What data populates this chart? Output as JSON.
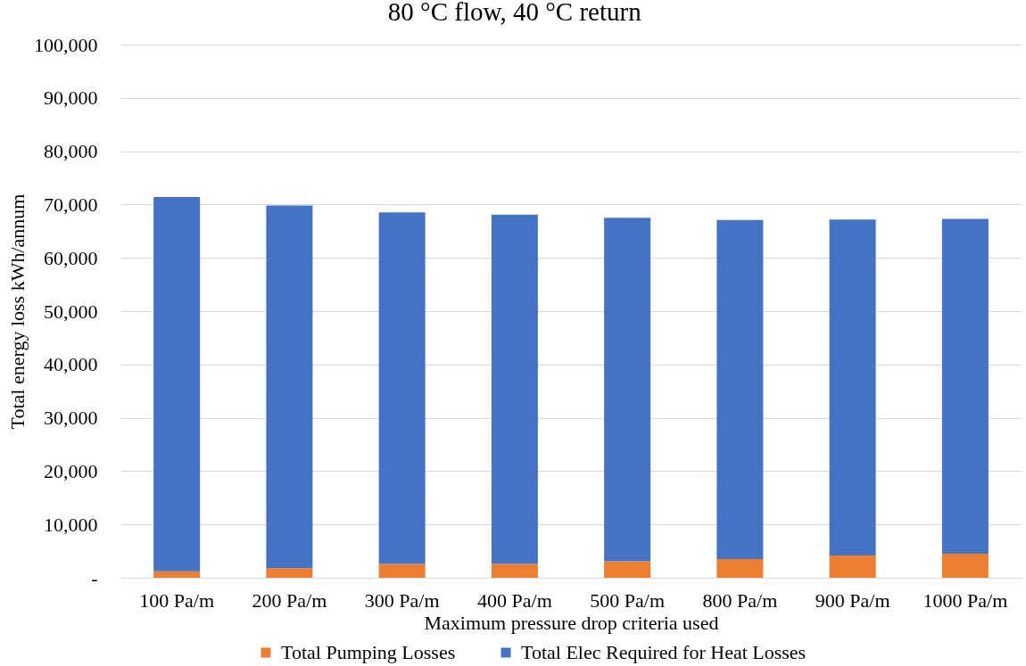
{
  "chart_data": {
    "type": "bar",
    "title": "80 °C flow, 40 °C return",
    "xlabel": "Maximum pressure drop criteria used",
    "ylabel": "Total energy loss kWh/annum",
    "categories": [
      "100 Pa/m",
      "200 Pa/m",
      "300 Pa/m",
      "400 Pa/m",
      "500 Pa/m",
      "800 Pa/m",
      "900 Pa/m",
      "1000 Pa/m"
    ],
    "series": [
      {
        "name": "Total Pumping Losses",
        "color": "#ed7d31",
        "values": [
          1200,
          1800,
          2600,
          2600,
          3100,
          3500,
          4200,
          4500
        ]
      },
      {
        "name": "Total Elec Required for Heat Losses",
        "color": "#4472c4",
        "values": [
          70200,
          68000,
          65900,
          65500,
          64400,
          63600,
          63000,
          62800
        ]
      }
    ],
    "stacked": true,
    "ylim": [
      0,
      100000
    ],
    "yticks": [
      {
        "value": 0,
        "label": "-"
      },
      {
        "value": 10000,
        "label": "10,000"
      },
      {
        "value": 20000,
        "label": "20,000"
      },
      {
        "value": 30000,
        "label": "30,000"
      },
      {
        "value": 40000,
        "label": "40,000"
      },
      {
        "value": 50000,
        "label": "50,000"
      },
      {
        "value": 60000,
        "label": "60,000"
      },
      {
        "value": 70000,
        "label": "70,000"
      },
      {
        "value": 80000,
        "label": "80,000"
      },
      {
        "value": 90000,
        "label": "90,000"
      },
      {
        "value": 100000,
        "label": "100,000"
      }
    ],
    "grid": "y",
    "legend": "bottom"
  }
}
